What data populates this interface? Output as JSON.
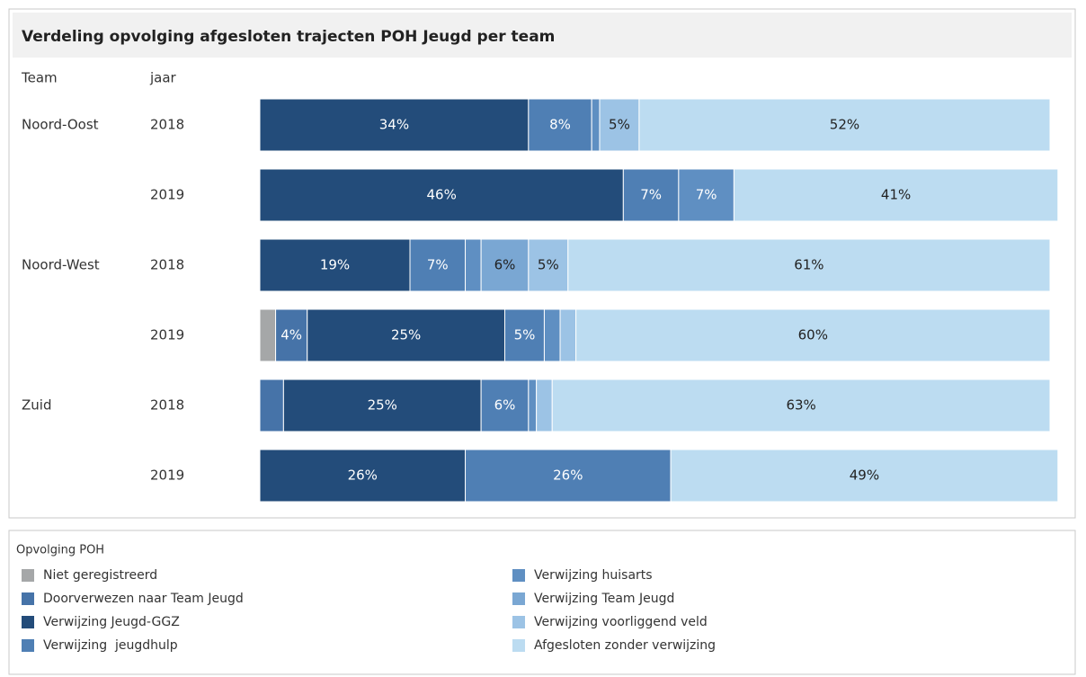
{
  "chart_data": {
    "type": "stacked-bar-horizontal",
    "title": "Verdeling opvolging afgesloten trajecten POH Jeugd per team",
    "row_header": "Team",
    "category_header": "jaar",
    "teams": [
      "Noord-Oost",
      null,
      "Noord-West",
      null,
      "Zuid",
      null
    ],
    "categories": [
      "2018",
      "2019",
      "2018",
      "2019",
      "2018",
      "2019"
    ],
    "xlim": [
      0,
      100
    ],
    "legend_title": "Opvolging POH",
    "series": [
      {
        "name": "Niet geregistreerd",
        "color": "#a5a7a8",
        "values": [
          0,
          0,
          0,
          2,
          0,
          0
        ],
        "value_labels": [
          null,
          null,
          null,
          null,
          null,
          null
        ]
      },
      {
        "name": "Doorverwezen naar Team Jeugd",
        "color": "#4673a8",
        "values": [
          0,
          0,
          0,
          4,
          3,
          0
        ],
        "value_labels": [
          null,
          null,
          null,
          "4%",
          null,
          null
        ]
      },
      {
        "name": "Verwijzing Jeugd-GGZ",
        "color": "#234c7a",
        "values": [
          34,
          46,
          19,
          25,
          25,
          26
        ],
        "value_labels": [
          "34%",
          "46%",
          "19%",
          "25%",
          "25%",
          "26%"
        ]
      },
      {
        "name": "Verwijzing  jeugdhulp",
        "color": "#4f7fb4",
        "values": [
          8,
          7,
          7,
          5,
          6,
          26
        ],
        "value_labels": [
          "8%",
          "7%",
          "7%",
          "5%",
          "6%",
          "26%"
        ]
      },
      {
        "name": "Verwijzing huisarts",
        "color": "#5f8fc2",
        "values": [
          1,
          7,
          2,
          2,
          1,
          0
        ],
        "value_labels": [
          null,
          "7%",
          null,
          null,
          null,
          null
        ]
      },
      {
        "name": "Verwijzing Team Jeugd",
        "color": "#7aa7d3",
        "values": [
          0,
          0,
          6,
          0,
          0,
          0
        ],
        "value_labels": [
          null,
          null,
          "6%",
          null,
          null,
          null
        ]
      },
      {
        "name": "Verwijzing voorliggend veld",
        "color": "#9cc3e5",
        "values": [
          5,
          0,
          5,
          2,
          2,
          0
        ],
        "value_labels": [
          "5%",
          null,
          "5%",
          null,
          null,
          null
        ]
      },
      {
        "name": "Afgesloten zonder verwijzing",
        "color": "#bcdcf1",
        "values": [
          52,
          41,
          61,
          60,
          63,
          49
        ],
        "value_labels": [
          "52%",
          "41%",
          "61%",
          "60%",
          "63%",
          "49%"
        ]
      }
    ]
  }
}
